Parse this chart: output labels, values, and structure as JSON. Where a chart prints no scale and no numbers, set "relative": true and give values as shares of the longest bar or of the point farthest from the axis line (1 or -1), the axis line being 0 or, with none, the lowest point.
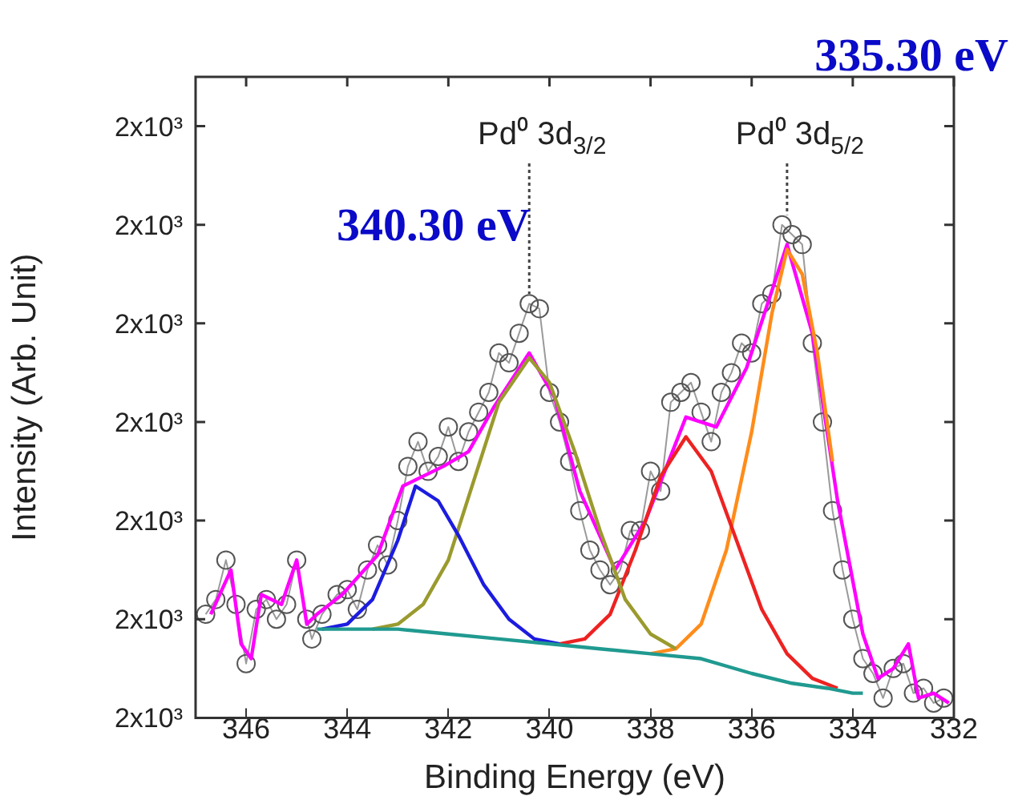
{
  "chart_data": {
    "type": "line",
    "relative": true,
    "xlabel": "Binding Energy (eV)",
    "ylabel": "Intensity (Arb. Unit)",
    "xlim": [
      347,
      332
    ],
    "xticks": [
      346,
      344,
      342,
      340,
      338,
      336,
      334,
      332
    ],
    "legend": false,
    "grid": false,
    "annotations": [
      {
        "text": "Pd⁰ 3d$_{3/2}$",
        "x": 340.4,
        "y": 0.86
      },
      {
        "text": "Pd⁰ 3d$_{5/2}$",
        "x": 335.3,
        "y": 1.02
      },
      "340.30 eV",
      "335.30 eV",
      "2x10³",
      "2x10³",
      "2x10³",
      "2x10³",
      "2x10³",
      "2x10³",
      "2x10³"
    ],
    "series": [
      {
        "marker": "circle",
        "color": "#555555",
        "x": [
          346.8,
          346.6,
          346.4,
          346.2,
          346.0,
          345.8,
          345.6,
          345.4,
          345.2,
          345.0,
          344.8,
          344.7,
          344.5,
          344.2,
          344.0,
          343.8,
          343.6,
          343.4,
          343.2,
          343.0,
          342.8,
          342.6,
          342.4,
          342.2,
          342.0,
          341.8,
          341.6,
          341.4,
          341.2,
          341.0,
          340.8,
          340.6,
          340.4,
          340.2,
          340.0,
          339.8,
          339.6,
          339.4,
          339.2,
          339.0,
          338.8,
          338.6,
          338.4,
          338.2,
          338.0,
          337.8,
          337.6,
          337.4,
          337.2,
          337.0,
          336.8,
          336.6,
          336.4,
          336.2,
          336.0,
          335.8,
          335.6,
          335.4,
          335.2,
          335.0,
          334.8,
          334.6,
          334.4,
          334.2,
          334.0,
          333.8,
          333.6,
          333.4,
          333.2,
          333.0,
          332.8,
          332.6,
          332.4,
          332.2
        ],
        "values": [
          0.21,
          0.24,
          0.32,
          0.23,
          0.11,
          0.22,
          0.24,
          0.2,
          0.23,
          0.32,
          0.2,
          0.16,
          0.21,
          0.25,
          0.26,
          0.22,
          0.3,
          0.35,
          0.31,
          0.4,
          0.51,
          0.56,
          0.5,
          0.53,
          0.59,
          0.52,
          0.58,
          0.62,
          0.66,
          0.74,
          0.72,
          0.78,
          0.84,
          0.83,
          0.66,
          0.6,
          0.52,
          0.42,
          0.34,
          0.3,
          0.27,
          0.3,
          0.38,
          0.38,
          0.5,
          0.46,
          0.64,
          0.66,
          0.68,
          0.62,
          0.56,
          0.66,
          0.7,
          0.76,
          0.74,
          0.84,
          0.86,
          1.0,
          0.98,
          0.96,
          0.76,
          0.6,
          0.42,
          0.3,
          0.2,
          0.12,
          0.09,
          0.04,
          0.1,
          0.11,
          0.05,
          0.06,
          0.03,
          0.04
        ]
      },
      {
        "marker": "none",
        "color": "#209a90",
        "x": [
          344.6,
          344,
          343,
          342,
          341,
          340,
          339,
          338,
          337,
          336,
          335.2,
          334.5,
          334.0,
          333.8
        ],
        "values": [
          0.18,
          0.18,
          0.18,
          0.17,
          0.16,
          0.15,
          0.14,
          0.13,
          0.12,
          0.09,
          0.07,
          0.06,
          0.05,
          0.05
        ]
      },
      {
        "marker": "none",
        "color": "#1c1ce0",
        "x": [
          344.5,
          344,
          343.5,
          343,
          342.65,
          342.2,
          341.8,
          341.3,
          340.8,
          340.3,
          339.8
        ],
        "values": [
          0.18,
          0.19,
          0.24,
          0.36,
          0.47,
          0.44,
          0.37,
          0.27,
          0.2,
          0.16,
          0.15
        ]
      },
      {
        "marker": "none",
        "color": "#9a9a2e",
        "x": [
          343.5,
          343,
          342.5,
          342,
          341.5,
          341,
          340.4,
          340,
          339.5,
          339,
          338.5,
          338,
          337.5
        ],
        "values": [
          0.18,
          0.19,
          0.23,
          0.32,
          0.48,
          0.64,
          0.73,
          0.68,
          0.54,
          0.38,
          0.24,
          0.17,
          0.14
        ]
      },
      {
        "marker": "none",
        "color": "#ee2222",
        "x": [
          339.8,
          339.3,
          338.8,
          338.3,
          337.8,
          337.3,
          336.8,
          336.3,
          335.8,
          335.3,
          334.8,
          334.3
        ],
        "values": [
          0.15,
          0.16,
          0.21,
          0.34,
          0.49,
          0.57,
          0.5,
          0.36,
          0.22,
          0.13,
          0.08,
          0.06
        ]
      },
      {
        "marker": "none",
        "color": "#ff8c1a",
        "x": [
          338,
          337.5,
          337,
          336.5,
          336,
          335.6,
          335.3,
          335,
          334.7,
          334.4
        ],
        "values": [
          0.13,
          0.14,
          0.19,
          0.34,
          0.58,
          0.82,
          0.95,
          0.9,
          0.74,
          0.52
        ]
      },
      {
        "marker": "none",
        "color": "#ff00ff",
        "x": [
          346.7,
          346.3,
          346.1,
          345.9,
          345.7,
          345.3,
          345.0,
          344.8,
          344.6,
          344.1,
          343.4,
          342.9,
          342.1,
          341.6,
          341.1,
          340.4,
          339.9,
          339.4,
          338.7,
          338.1,
          337.3,
          336.7,
          336.1,
          335.3,
          334.8,
          334.3,
          333.8,
          333.5,
          333.2,
          332.9,
          332.7,
          332.4,
          332.1
        ],
        "values": [
          0.21,
          0.3,
          0.15,
          0.12,
          0.25,
          0.23,
          0.32,
          0.19,
          0.21,
          0.25,
          0.33,
          0.47,
          0.51,
          0.54,
          0.63,
          0.74,
          0.65,
          0.46,
          0.3,
          0.4,
          0.61,
          0.59,
          0.71,
          0.96,
          0.78,
          0.44,
          0.17,
          0.08,
          0.1,
          0.15,
          0.04,
          0.05,
          0.03
        ]
      }
    ]
  }
}
